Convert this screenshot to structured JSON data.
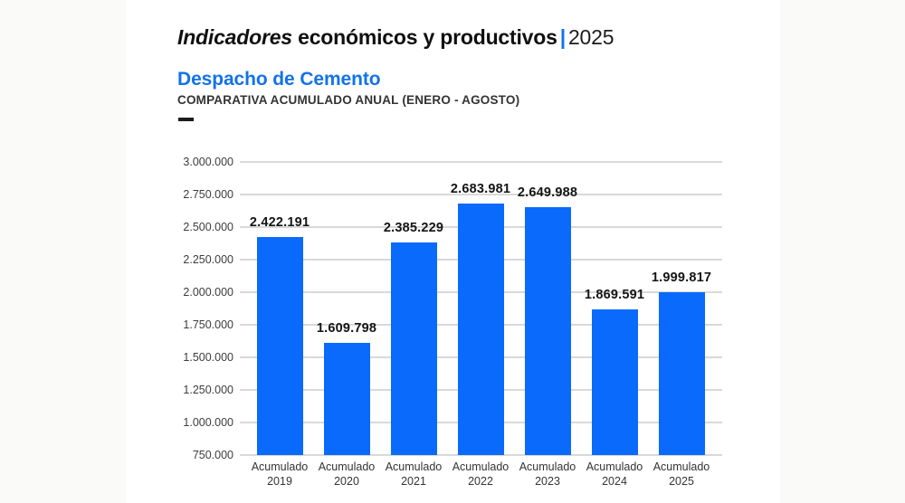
{
  "page": {
    "outer_background": "#fafaf9",
    "slide_background": "#ffffff"
  },
  "colors": {
    "accent_blue": "#1273e8",
    "bar_blue": "#0a6afc",
    "gridline_gray": "#d9d9d9",
    "title_black": "#101010"
  },
  "header": {
    "title_italic": "Indicadores",
    "title_rest": " económicos y productivos",
    "title_separator": "|",
    "title_year": "2025"
  },
  "section": {
    "heading": "Despacho de Cemento",
    "subheading": "COMPARATIVA ACUMULADO ANUAL (ENERO - AGOSTO)"
  },
  "chart_data": {
    "type": "bar",
    "title": "Despacho de Cemento",
    "subtitle": "COMPARATIVA ACUMULADO ANUAL (ENERO - AGOSTO)",
    "categories": [
      {
        "line1": "Acumulado",
        "line2": "2019"
      },
      {
        "line1": "Acumulado",
        "line2": "2020"
      },
      {
        "line1": "Acumulado",
        "line2": "2021"
      },
      {
        "line1": "Acumulado",
        "line2": "2022"
      },
      {
        "line1": "Acumulado",
        "line2": "2023"
      },
      {
        "line1": "Acumulado",
        "line2": "2024"
      },
      {
        "line1": "Acumulado",
        "line2": "2025"
      }
    ],
    "values": [
      2422191,
      1609798,
      2385229,
      2683981,
      2649988,
      1869591,
      1999817
    ],
    "value_labels": [
      "2.422.191",
      "1.609.798",
      "2.385.229",
      "2.683.981",
      "2.649.988",
      "1.869.591",
      "1.999.817"
    ],
    "y_ticks": [
      750000,
      1000000,
      1250000,
      1500000,
      1750000,
      2000000,
      2250000,
      2500000,
      2750000,
      3000000
    ],
    "y_tick_labels": [
      "750.000",
      "1.000.000",
      "1.250.000",
      "1.500.000",
      "1.750.000",
      "2.000.000",
      "2.250.000",
      "2.500.000",
      "2.750.000",
      "3.000.000"
    ],
    "ylim": [
      750000,
      3000000
    ],
    "xlabel": "",
    "ylabel": "",
    "grid": true,
    "legend": false,
    "bar_color": "#0a6afc"
  }
}
